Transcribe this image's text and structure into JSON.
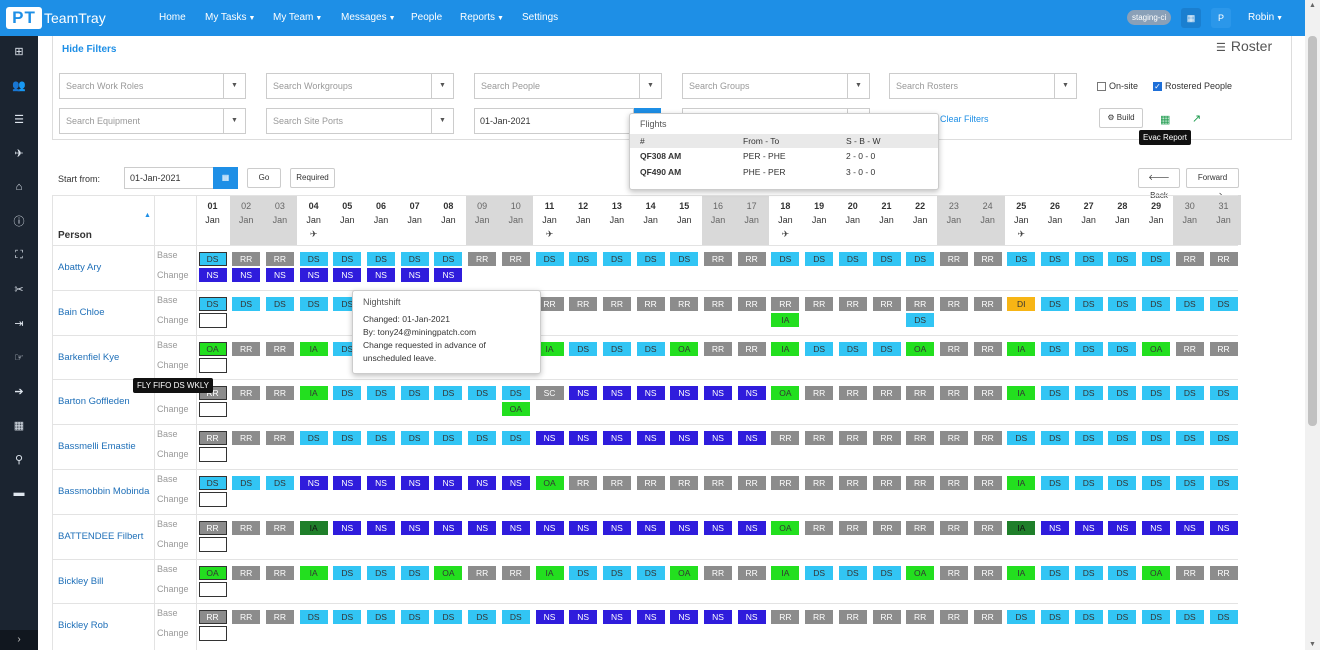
{
  "app": {
    "logo_letters": "PT",
    "name": "TeamTray",
    "brand_color": "#1e8fe6"
  },
  "nav": [
    {
      "label": "Home",
      "caret": false
    },
    {
      "label": "My Tasks",
      "caret": true
    },
    {
      "label": "My Team",
      "caret": true
    },
    {
      "label": "Messages",
      "caret": true
    },
    {
      "label": "People",
      "caret": false
    },
    {
      "label": "Reports",
      "caret": true
    },
    {
      "label": "Settings",
      "caret": false
    }
  ],
  "topright": {
    "env_badge": "staging-ci",
    "grid_icon": "grid-icon",
    "avatar_letter": "P",
    "user": "Robin"
  },
  "sidebar_icons": [
    "dashboard-icon",
    "people-icon",
    "list-icon",
    "plane-icon",
    "home-icon",
    "info-icon",
    "org-chart-icon",
    "tools-icon",
    "sign-in-icon",
    "hand-icon",
    "arrow-right-icon",
    "calendar-icon",
    "map-marker-icon",
    "book-icon"
  ],
  "filters": {
    "hide_label": "Hide Filters",
    "page_title": "Roster",
    "row1": [
      {
        "placeholder": "Search Work Roles"
      },
      {
        "placeholder": "Search Workgroups"
      },
      {
        "placeholder": "Search People"
      },
      {
        "placeholder": "Search Groups"
      },
      {
        "placeholder": "Search Rosters"
      }
    ],
    "row2": [
      {
        "placeholder": "Search Equipment"
      },
      {
        "placeholder": "Search Site Ports"
      }
    ],
    "date_value": "01-Jan-2021",
    "onsite_label": "On-site",
    "onsite_checked": false,
    "rostered_label": "Rostered People",
    "rostered_checked": true,
    "clear_label": "Clear Filters",
    "build_label": "Build",
    "evac_tooltip": "Evac Report"
  },
  "controls": {
    "start_label": "Start from:",
    "start_value": "01-Jan-2021",
    "go_label": "Go",
    "required_label": "Required",
    "back_label": "Back",
    "forward_label": "Forward"
  },
  "days": [
    {
      "d": "01",
      "m": "Jan",
      "we": false,
      "plane": false
    },
    {
      "d": "02",
      "m": "Jan",
      "we": true,
      "plane": false
    },
    {
      "d": "03",
      "m": "Jan",
      "we": true,
      "plane": false
    },
    {
      "d": "04",
      "m": "Jan",
      "we": false,
      "plane": true
    },
    {
      "d": "05",
      "m": "Jan",
      "we": false,
      "plane": false
    },
    {
      "d": "06",
      "m": "Jan",
      "we": false,
      "plane": false
    },
    {
      "d": "07",
      "m": "Jan",
      "we": false,
      "plane": false
    },
    {
      "d": "08",
      "m": "Jan",
      "we": false,
      "plane": false
    },
    {
      "d": "09",
      "m": "Jan",
      "we": true,
      "plane": false
    },
    {
      "d": "10",
      "m": "Jan",
      "we": true,
      "plane": false
    },
    {
      "d": "11",
      "m": "Jan",
      "we": false,
      "plane": true
    },
    {
      "d": "12",
      "m": "Jan",
      "we": false,
      "plane": false
    },
    {
      "d": "13",
      "m": "Jan",
      "we": false,
      "plane": false
    },
    {
      "d": "14",
      "m": "Jan",
      "we": false,
      "plane": false
    },
    {
      "d": "15",
      "m": "Jan",
      "we": false,
      "plane": false
    },
    {
      "d": "16",
      "m": "Jan",
      "we": true,
      "plane": false
    },
    {
      "d": "17",
      "m": "Jan",
      "we": true,
      "plane": false
    },
    {
      "d": "18",
      "m": "Jan",
      "we": false,
      "plane": true
    },
    {
      "d": "19",
      "m": "Jan",
      "we": false,
      "plane": false
    },
    {
      "d": "20",
      "m": "Jan",
      "we": false,
      "plane": false
    },
    {
      "d": "21",
      "m": "Jan",
      "we": false,
      "plane": false
    },
    {
      "d": "22",
      "m": "Jan",
      "we": false,
      "plane": false
    },
    {
      "d": "23",
      "m": "Jan",
      "we": true,
      "plane": false
    },
    {
      "d": "24",
      "m": "Jan",
      "we": true,
      "plane": false
    },
    {
      "d": "25",
      "m": "Jan",
      "we": false,
      "plane": true
    },
    {
      "d": "26",
      "m": "Jan",
      "we": false,
      "plane": false
    },
    {
      "d": "27",
      "m": "Jan",
      "we": false,
      "plane": false
    },
    {
      "d": "28",
      "m": "Jan",
      "we": false,
      "plane": false
    },
    {
      "d": "29",
      "m": "Jan",
      "we": false,
      "plane": false
    },
    {
      "d": "30",
      "m": "Jan",
      "we": true,
      "plane": false
    },
    {
      "d": "31",
      "m": "Jan",
      "we": true,
      "plane": false
    }
  ],
  "table": {
    "person_header": "Person",
    "base_label": "Base",
    "change_label": "Change",
    "people": [
      {
        "name": "Abatty Ary",
        "base": [
          "DS",
          "RR",
          "RR",
          "DS",
          "DS",
          "DS",
          "DS",
          "DS",
          "RR",
          "RR",
          "DS",
          "DS",
          "DS",
          "DS",
          "DS",
          "RR",
          "RR",
          "DS",
          "DS",
          "DS",
          "DS",
          "DS",
          "RR",
          "RR",
          "DS",
          "DS",
          "DS",
          "DS",
          "DS",
          "RR",
          "RR"
        ],
        "change": [
          "NS",
          "NS",
          "NS",
          "NS",
          "NS",
          "NS",
          "NS",
          "NS",
          "",
          "",
          "",
          "",
          "",
          "",
          "",
          "",
          "",
          "",
          "",
          "",
          "",
          "",
          "",
          "",
          "",
          "",
          "",
          "",
          "",
          "",
          ""
        ]
      },
      {
        "name": "Bain Chloe",
        "base": [
          "DS",
          "DS",
          "DS",
          "DS",
          "DS",
          "DS",
          "DS",
          "DS",
          "RR",
          "RR",
          "RR",
          "RR",
          "RR",
          "RR",
          "RR",
          "RR",
          "RR",
          "RR",
          "RR",
          "RR",
          "RR",
          "RR",
          "RR",
          "RR",
          "DI",
          "DS",
          "DS",
          "DS",
          "DS",
          "DS",
          "DS"
        ],
        "change": [
          "",
          "",
          "",
          "",
          "",
          "",
          "",
          "",
          "",
          "",
          "",
          "",
          "",
          "",
          "",
          "",
          "",
          "IA",
          "",
          "",
          "",
          "DS",
          "",
          "",
          "",
          "",
          "",
          "",
          "",
          "",
          ""
        ]
      },
      {
        "name": "Barkenfiel Kye",
        "base": [
          "OA",
          "RR",
          "RR",
          "IA",
          "DS",
          "DS",
          "DS",
          "DS",
          "RR",
          "RR",
          "IA",
          "DS",
          "DS",
          "DS",
          "OA",
          "RR",
          "RR",
          "IA",
          "DS",
          "DS",
          "DS",
          "OA",
          "RR",
          "RR",
          "IA",
          "DS",
          "DS",
          "DS",
          "OA",
          "RR",
          "RR"
        ],
        "change": [
          "",
          "",
          "",
          "",
          "",
          "",
          "",
          "",
          "",
          "",
          "",
          "",
          "",
          "",
          "",
          "",
          "",
          "",
          "",
          "",
          "",
          "",
          "",
          "",
          "",
          "",
          "",
          "",
          "",
          "",
          ""
        ]
      },
      {
        "name": "Barton Goffleden",
        "base": [
          "RR",
          "RR",
          "RR",
          "IA",
          "DS",
          "DS",
          "DS",
          "DS",
          "DS",
          "DS",
          "SC",
          "NS",
          "NS",
          "NS",
          "NS",
          "NS",
          "NS",
          "OA",
          "RR",
          "RR",
          "RR",
          "RR",
          "RR",
          "RR",
          "IA",
          "DS",
          "DS",
          "DS",
          "DS",
          "DS",
          "DS"
        ],
        "change": [
          "",
          "",
          "",
          "",
          "",
          "",
          "",
          "",
          "",
          "OA",
          "",
          "",
          "",
          "",
          "",
          "",
          "",
          "",
          "",
          "",
          "",
          "",
          "",
          "",
          "",
          "",
          "",
          "",
          "",
          "",
          ""
        ]
      },
      {
        "name": "Bassmelli Emastie",
        "base": [
          "RR",
          "RR",
          "RR",
          "DS",
          "DS",
          "DS",
          "DS",
          "DS",
          "DS",
          "DS",
          "NS",
          "NS",
          "NS",
          "NS",
          "NS",
          "NS",
          "NS",
          "RR",
          "RR",
          "RR",
          "RR",
          "RR",
          "RR",
          "RR",
          "DS",
          "DS",
          "DS",
          "DS",
          "DS",
          "DS",
          "DS"
        ],
        "change": [
          "",
          "",
          "",
          "",
          "",
          "",
          "",
          "",
          "",
          "",
          "",
          "",
          "",
          "",
          "",
          "",
          "",
          "",
          "",
          "",
          "",
          "",
          "",
          "",
          "",
          "",
          "",
          "",
          "",
          "",
          ""
        ]
      },
      {
        "name": "Bassmobbin Mobinda",
        "base": [
          "DS",
          "DS",
          "DS",
          "NS",
          "NS",
          "NS",
          "NS",
          "NS",
          "NS",
          "NS",
          "OA",
          "RR",
          "RR",
          "RR",
          "RR",
          "RR",
          "RR",
          "RR",
          "RR",
          "RR",
          "RR",
          "RR",
          "RR",
          "RR",
          "IA",
          "DS",
          "DS",
          "DS",
          "DS",
          "DS",
          "DS"
        ],
        "change": [
          "",
          "",
          "",
          "",
          "",
          "",
          "",
          "",
          "",
          "",
          "",
          "",
          "",
          "",
          "",
          "",
          "",
          "",
          "",
          "",
          "",
          "",
          "",
          "",
          "",
          "",
          "",
          "",
          "",
          "",
          ""
        ]
      },
      {
        "name": "BATTENDEE Filbert",
        "base": [
          "RR",
          "RR",
          "RR",
          "IAd",
          "NS",
          "NS",
          "NS",
          "NS",
          "NS",
          "NS",
          "NS",
          "NS",
          "NS",
          "NS",
          "NS",
          "NS",
          "NS",
          "OA",
          "RR",
          "RR",
          "RR",
          "RR",
          "RR",
          "RR",
          "IAd",
          "NS",
          "NS",
          "NS",
          "NS",
          "NS",
          "NS"
        ],
        "change": [
          "",
          "",
          "",
          "",
          "",
          "",
          "",
          "",
          "",
          "",
          "",
          "",
          "",
          "",
          "",
          "",
          "",
          "",
          "",
          "",
          "",
          "",
          "",
          "",
          "",
          "",
          "",
          "",
          "",
          "",
          ""
        ]
      },
      {
        "name": "Bickley Bill",
        "base": [
          "OA",
          "RR",
          "RR",
          "IA",
          "DS",
          "DS",
          "DS",
          "OA",
          "RR",
          "RR",
          "IA",
          "DS",
          "DS",
          "DS",
          "OA",
          "RR",
          "RR",
          "IA",
          "DS",
          "DS",
          "DS",
          "OA",
          "RR",
          "RR",
          "IA",
          "DS",
          "DS",
          "DS",
          "OA",
          "RR",
          "RR"
        ],
        "change": [
          "",
          "",
          "",
          "",
          "",
          "",
          "",
          "",
          "",
          "",
          "",
          "",
          "",
          "",
          "",
          "",
          "",
          "",
          "",
          "",
          "",
          "",
          "",
          "",
          "",
          "",
          "",
          "",
          "",
          "",
          ""
        ]
      },
      {
        "name": "Bickley Rob",
        "base": [
          "RR",
          "RR",
          "RR",
          "DS",
          "DS",
          "DS",
          "DS",
          "DS",
          "DS",
          "DS",
          "NS",
          "NS",
          "NS",
          "NS",
          "NS",
          "NS",
          "NS",
          "RR",
          "RR",
          "RR",
          "RR",
          "RR",
          "RR",
          "RR",
          "DS",
          "DS",
          "DS",
          "DS",
          "DS",
          "DS",
          "DS"
        ],
        "change": [
          "",
          "",
          "",
          "",
          "",
          "",
          "",
          "",
          "",
          "",
          "",
          "",
          "",
          "",
          "",
          "",
          "",
          "",
          "",
          "",
          "",
          "",
          "",
          "",
          "",
          "",
          "",
          "",
          "",
          "",
          ""
        ]
      }
    ]
  },
  "flights_popup": {
    "title": "Flights",
    "headers": [
      "#",
      "From - To",
      "S - B - W"
    ],
    "rows": [
      {
        "code": "QF308 AM",
        "route": "PER - PHE",
        "sbw": "2 - 0 - 0"
      },
      {
        "code": "QF490 AM",
        "route": "PHE - PER",
        "sbw": "3 - 0 - 0"
      }
    ]
  },
  "nightshift_popup": {
    "title": "Nightshift",
    "changed": "Changed: 01-Jan-2021",
    "by": "By: tony24@miningpatch.com",
    "note": "Change requested in advance of unscheduled leave."
  },
  "fifo_tooltip": "FLY FIFO DS WKLY",
  "colors": {
    "RR": "#8c8c8c",
    "DS": "#32c5f4",
    "NS": "#2f1cdc",
    "IA": "#23df1f",
    "OA": "#23df1f",
    "DI": "#f7b515"
  }
}
